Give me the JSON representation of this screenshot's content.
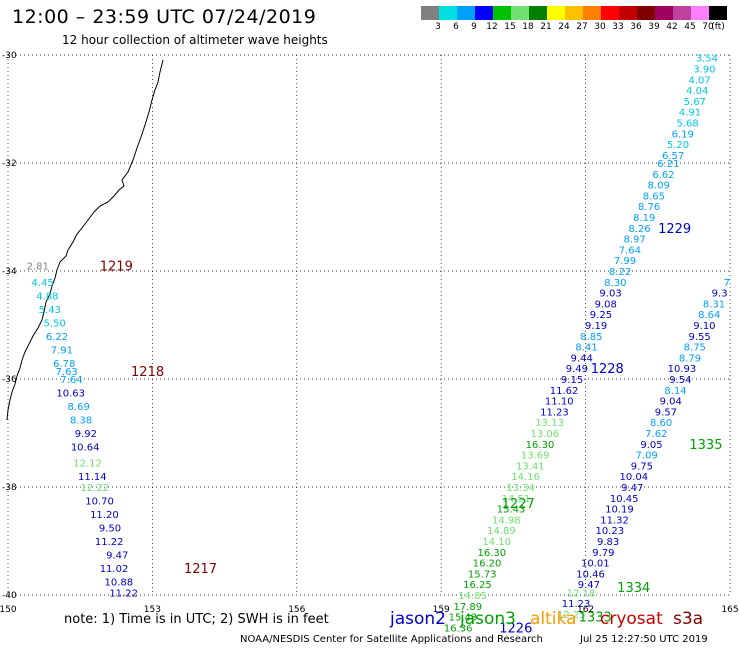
{
  "title": "12:00 – 23:59 UTC 07/24/2019",
  "subtitle": "12 hour collection of altimeter wave heights",
  "legend": {
    "colors": [
      "#808080",
      "#00e0e0",
      "#00a0ff",
      "#0000ff",
      "#00c000",
      "#70e070",
      "#008000",
      "#ffff00",
      "#ffc000",
      "#ff8000",
      "#ff0000",
      "#c00000",
      "#800000",
      "#a00060",
      "#c040a0",
      "#ff80ff",
      "#000000"
    ],
    "labels": [
      "3",
      "6",
      "9",
      "12",
      "15",
      "18",
      "21",
      "24",
      "27",
      "30",
      "33",
      "36",
      "39",
      "42",
      "45",
      "70",
      "(ft)"
    ]
  },
  "axes": {
    "lon_labels": [
      "150",
      "153",
      "156",
      "159",
      "162",
      "165"
    ],
    "lat_labels": [
      "-30",
      "-32",
      "-34",
      "-36",
      "-38",
      "-40"
    ]
  },
  "note": "note:  1) Time is in UTC;  2) SWH is in feet",
  "satellites": [
    {
      "name": "jason2",
      "color": "#0000cc"
    },
    {
      "name": "jason3",
      "color": "#00a000"
    },
    {
      "name": "altika",
      "color": "#ff9900"
    },
    {
      "name": "cryosat",
      "color": "#cc0000"
    },
    {
      "name": "s3a",
      "color": "#800000"
    }
  ],
  "credit": "NOAA/NESDIS Center for Satellite Applications and Research",
  "timestamp": "Jul 25 12:27:50 UTC 2019",
  "tracks": [
    {
      "id": "t1219",
      "satellite": "s3a",
      "pass": "1219",
      "pass_time": {
        "lon": 152.25,
        "lat": -33.9
      },
      "points": [
        {
          "lon": 150.85,
          "lat": -33.9,
          "v": "2.81",
          "c": "#808080"
        },
        {
          "lon": 150.95,
          "lat": -34.2,
          "v": "4.45",
          "c": "#00c8e0"
        },
        {
          "lon": 151.05,
          "lat": -34.45,
          "v": "4.88",
          "c": "#00c8e0"
        },
        {
          "lon": 151.1,
          "lat": -34.7,
          "v": "5.43",
          "c": "#00c8e0"
        },
        {
          "lon": 151.2,
          "lat": -34.95,
          "v": "5.50",
          "c": "#00c8e0"
        },
        {
          "lon": 151.25,
          "lat": -35.2,
          "v": "6.22",
          "c": "#00a0ff"
        },
        {
          "lon": 151.35,
          "lat": -35.45,
          "v": "7.91",
          "c": "#00a0ff"
        },
        {
          "lon": 151.4,
          "lat": -35.7,
          "v": "6.78",
          "c": "#00a0ff"
        },
        {
          "lon": 151.45,
          "lat": -35.85,
          "v": "7.63",
          "c": "#00a0ff"
        }
      ]
    },
    {
      "id": "t1218",
      "satellite": "s3a",
      "pass": "1218",
      "pass_time": {
        "lon": 152.9,
        "lat": -35.85
      },
      "points": [
        {
          "lon": 151.55,
          "lat": -36.0,
          "v": "7.64",
          "c": "#00a0ff"
        },
        {
          "lon": 151.6,
          "lat": -36.25,
          "v": "10.63",
          "c": "#0000cc"
        },
        {
          "lon": 151.7,
          "lat": -36.5,
          "v": "8.69",
          "c": "#00a0ff"
        },
        {
          "lon": 151.75,
          "lat": -36.75,
          "v": "8.38",
          "c": "#00a0ff"
        },
        {
          "lon": 151.85,
          "lat": -37.0,
          "v": "9.92",
          "c": "#0000cc"
        },
        {
          "lon": 151.9,
          "lat": -37.25,
          "v": "10.64",
          "c": "#0000cc"
        },
        {
          "lon": 151.95,
          "lat": -37.55,
          "v": "12.12",
          "c": "#70e070"
        },
        {
          "lon": 152.05,
          "lat": -37.8,
          "v": "11.14",
          "c": "#0000cc"
        },
        {
          "lon": 152.1,
          "lat": -38.0,
          "v": "12.22",
          "c": "#70e070"
        },
        {
          "lon": 152.2,
          "lat": -38.25,
          "v": "10.70",
          "c": "#0000cc"
        },
        {
          "lon": 152.3,
          "lat": -38.5,
          "v": "11.20",
          "c": "#0000cc"
        },
        {
          "lon": 152.35,
          "lat": -38.75,
          "v": "9.50",
          "c": "#0000cc"
        },
        {
          "lon": 152.4,
          "lat": -39.0,
          "v": "11.22",
          "c": "#0000cc"
        },
        {
          "lon": 152.5,
          "lat": -39.25,
          "v": "9.47",
          "c": "#0000cc"
        },
        {
          "lon": 152.5,
          "lat": -39.5,
          "v": "11.02",
          "c": "#0000cc"
        }
      ]
    },
    {
      "id": "t1217",
      "satellite": "s3a",
      "pass": "1217",
      "pass_time": {
        "lon": 154.0,
        "lat": -39.5
      },
      "points": [
        {
          "lon": 152.6,
          "lat": -39.75,
          "v": "10.88",
          "c": "#0000cc"
        },
        {
          "lon": 152.7,
          "lat": -39.95,
          "v": "11.22",
          "c": "#0000cc"
        }
      ]
    },
    {
      "id": "t1229",
      "satellite": "jason2",
      "pass": "1229",
      "pass_time": {
        "lon": 163.85,
        "lat": -33.2
      },
      "points": [
        {
          "lon": 164.75,
          "lat": -30.05,
          "v": "3.54",
          "c": "#00c8e0"
        },
        {
          "lon": 164.7,
          "lat": -30.25,
          "v": "3.90",
          "c": "#00c8e0"
        },
        {
          "lon": 164.6,
          "lat": -30.45,
          "v": "4.07",
          "c": "#00c8e0"
        },
        {
          "lon": 164.55,
          "lat": -30.65,
          "v": "4.04",
          "c": "#00c8e0"
        },
        {
          "lon": 164.5,
          "lat": -30.85,
          "v": "5.67",
          "c": "#00c8e0"
        },
        {
          "lon": 164.4,
          "lat": -31.05,
          "v": "4.91",
          "c": "#00c8e0"
        },
        {
          "lon": 164.35,
          "lat": -31.25,
          "v": "5.68",
          "c": "#00c8e0"
        },
        {
          "lon": 164.25,
          "lat": -31.45,
          "v": "6.19",
          "c": "#00a0ff"
        },
        {
          "lon": 164.15,
          "lat": -31.65,
          "v": "5.20",
          "c": "#00c8e0"
        },
        {
          "lon": 164.05,
          "lat": -31.85,
          "v": "6.57",
          "c": "#00a0ff"
        },
        {
          "lon": 163.95,
          "lat": -32.0,
          "v": "6.21",
          "c": "#00a0ff"
        },
        {
          "lon": 163.85,
          "lat": -32.2,
          "v": "6.62",
          "c": "#00a0ff"
        },
        {
          "lon": 163.75,
          "lat": -32.4,
          "v": "8.09",
          "c": "#00a0ff"
        },
        {
          "lon": 163.65,
          "lat": -32.6,
          "v": "8.65",
          "c": "#00a0ff"
        },
        {
          "lon": 163.55,
          "lat": -32.8,
          "v": "8.76",
          "c": "#00a0ff"
        },
        {
          "lon": 163.45,
          "lat": -33.0,
          "v": "8.19",
          "c": "#00a0ff"
        },
        {
          "lon": 163.35,
          "lat": -33.2,
          "v": "8.26",
          "c": "#00a0ff"
        },
        {
          "lon": 163.25,
          "lat": -33.4,
          "v": "8.97",
          "c": "#00a0ff"
        },
        {
          "lon": 163.15,
          "lat": -33.6,
          "v": "7.64",
          "c": "#00a0ff"
        },
        {
          "lon": 163.05,
          "lat": -33.8,
          "v": "7.99",
          "c": "#00a0ff"
        },
        {
          "lon": 162.95,
          "lat": -34.0,
          "v": "8.22",
          "c": "#00a0ff"
        },
        {
          "lon": 162.85,
          "lat": -34.2,
          "v": "8.30",
          "c": "#00a0ff"
        },
        {
          "lon": 162.75,
          "lat": -34.4,
          "v": "9.03",
          "c": "#0000cc"
        },
        {
          "lon": 162.65,
          "lat": -34.6,
          "v": "9.08",
          "c": "#0000cc"
        },
        {
          "lon": 162.55,
          "lat": -34.8,
          "v": "9.25",
          "c": "#0000cc"
        },
        {
          "lon": 162.45,
          "lat": -35.0,
          "v": "9.19",
          "c": "#0000cc"
        },
        {
          "lon": 162.35,
          "lat": -35.2,
          "v": "8.85",
          "c": "#00a0ff"
        },
        {
          "lon": 162.25,
          "lat": -35.4,
          "v": "8.41",
          "c": "#00a0ff"
        },
        {
          "lon": 162.15,
          "lat": -35.6,
          "v": "9.44",
          "c": "#0000cc"
        },
        {
          "lon": 162.05,
          "lat": -35.8,
          "v": "9.49",
          "c": "#0000cc"
        }
      ]
    },
    {
      "id": "t1228",
      "satellite": "jason2",
      "pass": "1228",
      "pass_time": {
        "lon": 162.45,
        "lat": -35.8
      },
      "points": [
        {
          "lon": 161.95,
          "lat": -36.0,
          "v": "9.15",
          "c": "#0000cc"
        },
        {
          "lon": 161.85,
          "lat": -36.2,
          "v": "11.62",
          "c": "#0000cc"
        },
        {
          "lon": 161.75,
          "lat": -36.4,
          "v": "11.10",
          "c": "#0000cc"
        },
        {
          "lon": 161.65,
          "lat": -36.6,
          "v": "11.23",
          "c": "#0000cc"
        }
      ]
    },
    {
      "id": "t1227",
      "satellite": "jason3",
      "pass": "1227",
      "pass_time": {
        "lon": 160.6,
        "lat": -38.3
      },
      "points": [
        {
          "lon": 161.55,
          "lat": -36.8,
          "v": "13.13",
          "c": "#70e070"
        },
        {
          "lon": 161.45,
          "lat": -37.0,
          "v": "13.06",
          "c": "#70e070"
        },
        {
          "lon": 161.35,
          "lat": -37.2,
          "v": "16.30",
          "c": "#00a000"
        },
        {
          "lon": 161.25,
          "lat": -37.4,
          "v": "13.69",
          "c": "#70e070"
        },
        {
          "lon": 161.15,
          "lat": -37.6,
          "v": "13.41",
          "c": "#70e070"
        },
        {
          "lon": 161.05,
          "lat": -37.8,
          "v": "14.16",
          "c": "#70e070"
        },
        {
          "lon": 160.95,
          "lat": -38.0,
          "v": "13.34",
          "c": "#70e070"
        },
        {
          "lon": 160.85,
          "lat": -38.2,
          "v": "14.51",
          "c": "#70e070"
        },
        {
          "lon": 160.75,
          "lat": -38.4,
          "v": "15.43",
          "c": "#00a000"
        },
        {
          "lon": 160.65,
          "lat": -38.6,
          "v": "14.98",
          "c": "#70e070"
        },
        {
          "lon": 160.55,
          "lat": -38.8,
          "v": "14.89",
          "c": "#70e070"
        },
        {
          "lon": 160.45,
          "lat": -39.0,
          "v": "14.10",
          "c": "#70e070"
        },
        {
          "lon": 160.35,
          "lat": -39.2,
          "v": "16.30",
          "c": "#00a000"
        },
        {
          "lon": 160.25,
          "lat": -39.4,
          "v": "16.20",
          "c": "#00a000"
        },
        {
          "lon": 160.15,
          "lat": -39.6,
          "v": "15.73",
          "c": "#00a000"
        },
        {
          "lon": 160.05,
          "lat": -39.8,
          "v": "16.25",
          "c": "#00a000"
        },
        {
          "lon": 159.95,
          "lat": -40.0,
          "v": "14.85",
          "c": "#70e070"
        },
        {
          "lon": 159.85,
          "lat": -40.2,
          "v": "17.89",
          "c": "#00a000"
        },
        {
          "lon": 159.75,
          "lat": -40.4,
          "v": "15.43",
          "c": "#00a000"
        },
        {
          "lon": 159.65,
          "lat": -40.6,
          "v": "16.36",
          "c": "#00a000"
        }
      ]
    },
    {
      "id": "t1226",
      "satellite": "jason2",
      "pass": "1226",
      "pass_time": {
        "lon": 160.55,
        "lat": -40.6
      },
      "points": []
    },
    {
      "id": "t1335",
      "satellite": "jason3",
      "pass": "1335",
      "pass_time": {
        "lon": 164.5,
        "lat": -37.2
      },
      "points": [
        {
          "lon": 165.0,
          "lat": -34.2,
          "v": "7",
          "c": "#00a0ff"
        },
        {
          "lon": 164.95,
          "lat": -34.4,
          "v": "9.3",
          "c": "#0000cc"
        },
        {
          "lon": 164.9,
          "lat": -34.6,
          "v": "8.31",
          "c": "#00a0ff"
        },
        {
          "lon": 164.8,
          "lat": -34.8,
          "v": "8.64",
          "c": "#00a0ff"
        },
        {
          "lon": 164.7,
          "lat": -35.0,
          "v": "9.10",
          "c": "#0000cc"
        },
        {
          "lon": 164.6,
          "lat": -35.2,
          "v": "9.55",
          "c": "#0000cc"
        },
        {
          "lon": 164.5,
          "lat": -35.4,
          "v": "8.75",
          "c": "#00a0ff"
        },
        {
          "lon": 164.4,
          "lat": -35.6,
          "v": "8.79",
          "c": "#00a0ff"
        },
        {
          "lon": 164.3,
          "lat": -35.8,
          "v": "10.93",
          "c": "#0000cc"
        },
        {
          "lon": 164.2,
          "lat": -36.0,
          "v": "9.54",
          "c": "#0000cc"
        },
        {
          "lon": 164.1,
          "lat": -36.2,
          "v": "8.14",
          "c": "#00a0ff"
        },
        {
          "lon": 164.0,
          "lat": -36.4,
          "v": "9.04",
          "c": "#0000cc"
        },
        {
          "lon": 163.9,
          "lat": -36.6,
          "v": "9.57",
          "c": "#0000cc"
        },
        {
          "lon": 163.8,
          "lat": -36.8,
          "v": "8.60",
          "c": "#00a0ff"
        },
        {
          "lon": 163.7,
          "lat": -37.0,
          "v": "7.62",
          "c": "#00a0ff"
        },
        {
          "lon": 163.6,
          "lat": -37.2,
          "v": "9.05",
          "c": "#0000cc"
        }
      ]
    },
    {
      "id": "t1334",
      "satellite": "jason3",
      "pass": "1334",
      "pass_time": {
        "lon": 163.0,
        "lat": -39.85
      },
      "points": [
        {
          "lon": 163.5,
          "lat": -37.4,
          "v": "7.09",
          "c": "#00a0ff"
        },
        {
          "lon": 163.4,
          "lat": -37.6,
          "v": "9.75",
          "c": "#0000cc"
        },
        {
          "lon": 163.3,
          "lat": -37.8,
          "v": "10.04",
          "c": "#0000cc"
        },
        {
          "lon": 163.2,
          "lat": -38.0,
          "v": "9.47",
          "c": "#0000cc"
        },
        {
          "lon": 163.1,
          "lat": -38.2,
          "v": "10.45",
          "c": "#0000cc"
        },
        {
          "lon": 163.0,
          "lat": -38.4,
          "v": "10.19",
          "c": "#0000cc"
        },
        {
          "lon": 162.9,
          "lat": -38.6,
          "v": "11.32",
          "c": "#0000cc"
        },
        {
          "lon": 162.8,
          "lat": -38.8,
          "v": "10.23",
          "c": "#0000cc"
        },
        {
          "lon": 162.7,
          "lat": -39.0,
          "v": "9.83",
          "c": "#0000cc"
        },
        {
          "lon": 162.6,
          "lat": -39.2,
          "v": "9.79",
          "c": "#0000cc"
        },
        {
          "lon": 162.5,
          "lat": -39.4,
          "v": "10.01",
          "c": "#0000cc"
        },
        {
          "lon": 162.4,
          "lat": -39.6,
          "v": "10.46",
          "c": "#0000cc"
        },
        {
          "lon": 162.3,
          "lat": -39.8,
          "v": "9.47",
          "c": "#0000cc"
        },
        {
          "lon": 162.2,
          "lat": -39.95,
          "v": "12.18",
          "c": "#70e070"
        },
        {
          "lon": 162.1,
          "lat": -40.15,
          "v": "11.23",
          "c": "#0000cc"
        },
        {
          "lon": 162.0,
          "lat": -40.35,
          "v": "12.25",
          "c": "#70e070"
        }
      ]
    },
    {
      "id": "t1333",
      "satellite": "jason3",
      "pass": "1333",
      "pass_time": {
        "lon": 162.2,
        "lat": -40.4
      },
      "points": []
    }
  ]
}
